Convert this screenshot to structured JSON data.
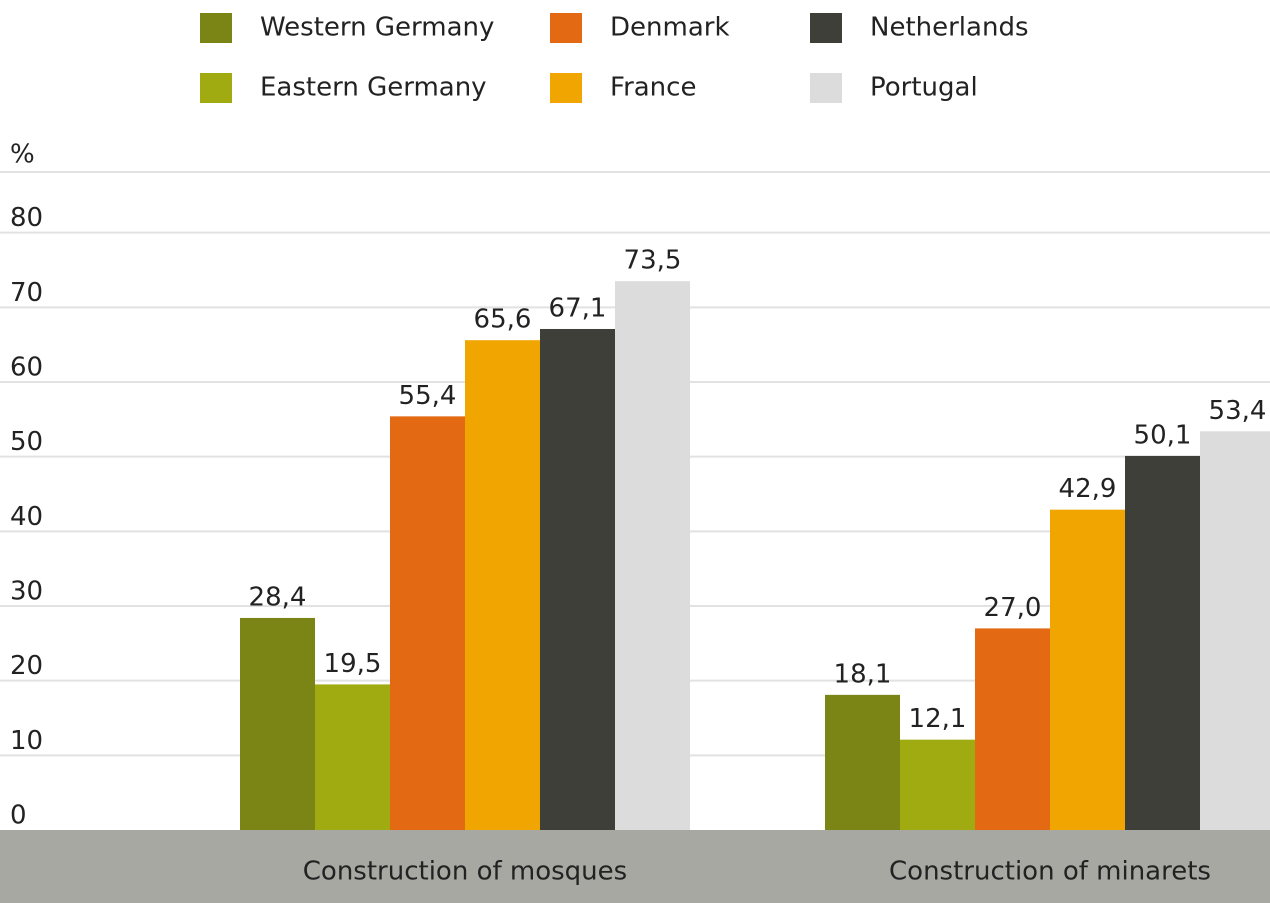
{
  "chart_data": {
    "type": "bar",
    "y_axis_label": "%",
    "categories": [
      "Construction of mosques",
      "Construction of minarets"
    ],
    "series": [
      {
        "name": "Western Germany",
        "color": "#7a8516",
        "values": [
          28.4,
          18.1
        ],
        "value_labels": [
          "28,4",
          "18,1"
        ]
      },
      {
        "name": "Eastern Germany",
        "color": "#a0ab12",
        "values": [
          19.5,
          12.1
        ],
        "value_labels": [
          "19,5",
          "12,1"
        ]
      },
      {
        "name": "Denmark",
        "color": "#e36a12",
        "values": [
          55.4,
          27.0
        ],
        "value_labels": [
          "55,4",
          "27,0"
        ]
      },
      {
        "name": "France",
        "color": "#f0a500",
        "values": [
          65.6,
          42.9
        ],
        "value_labels": [
          "65,6",
          "42,9"
        ]
      },
      {
        "name": "Netherlands",
        "color": "#3f3f3a",
        "values": [
          67.1,
          50.1
        ],
        "value_labels": [
          "67,1",
          "50,1"
        ]
      },
      {
        "name": "Portugal",
        "color": "#dcdcdc",
        "values": [
          73.5,
          53.4
        ],
        "value_labels": [
          "73,5",
          "53,4"
        ]
      }
    ],
    "ylim": [
      0,
      90
    ],
    "yticks": [
      0,
      10,
      20,
      30,
      40,
      50,
      60,
      70,
      80
    ],
    "grid": true,
    "legend": "top"
  }
}
